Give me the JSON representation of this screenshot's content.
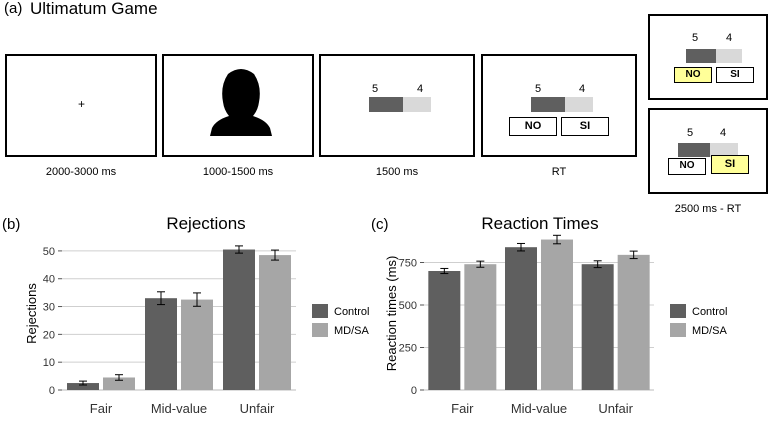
{
  "panel_a": {
    "label": "(a)",
    "title": "Ultimatum Game",
    "frames": [
      {
        "symbol": "+",
        "caption": "2000-3000 ms"
      },
      {
        "caption": "1000-1500 ms"
      },
      {
        "offer_left": "5",
        "offer_right": "4",
        "caption": "1500 ms"
      },
      {
        "offer_left": "5",
        "offer_right": "4",
        "no": "NO",
        "si": "SI",
        "caption": "RT"
      }
    ],
    "feedback": {
      "top": {
        "offer_left": "5",
        "offer_right": "4",
        "no": "NO",
        "si": "SI",
        "selected": "NO"
      },
      "bottom": {
        "offer_left": "5",
        "offer_right": "4",
        "no": "NO",
        "si": "SI",
        "selected": "SI"
      },
      "caption": "2500 ms - RT"
    }
  },
  "panel_b": {
    "label": "(b)"
  },
  "panel_c": {
    "label": "(c)"
  },
  "colors": {
    "control": "#5f5f5f",
    "mdsa": "#a6a6a6",
    "highlight": "#ffff99"
  },
  "chart_data": [
    {
      "type": "bar",
      "title": "Rejections",
      "ylabel": "Rejections",
      "xlabel": "",
      "categories": [
        "Fair",
        "Mid-value",
        "Unfair"
      ],
      "series": [
        {
          "name": "Control",
          "values": [
            2.5,
            33,
            50.5
          ],
          "errors": [
            0.7,
            2.3,
            1.3
          ]
        },
        {
          "name": "MD/SA",
          "values": [
            4.5,
            32.5,
            48.5
          ],
          "errors": [
            1.0,
            2.4,
            1.8
          ]
        }
      ],
      "ylim": [
        0,
        55
      ],
      "yticks": [
        0,
        10,
        20,
        30,
        40,
        50
      ],
      "grid": true,
      "legend": "right"
    },
    {
      "type": "bar",
      "title": "Reaction Times",
      "ylabel": "Reaction times (ms)",
      "xlabel": "",
      "categories": [
        "Fair",
        "Mid-value",
        "Unfair"
      ],
      "series": [
        {
          "name": "Control",
          "values": [
            700,
            840,
            740
          ],
          "errors": [
            15,
            22,
            20
          ]
        },
        {
          "name": "MD/SA",
          "values": [
            740,
            885,
            795
          ],
          "errors": [
            18,
            25,
            22
          ]
        }
      ],
      "ylim": [
        0,
        900
      ],
      "yticks": [
        0,
        250,
        500,
        750
      ],
      "grid": true,
      "legend": "right"
    }
  ]
}
